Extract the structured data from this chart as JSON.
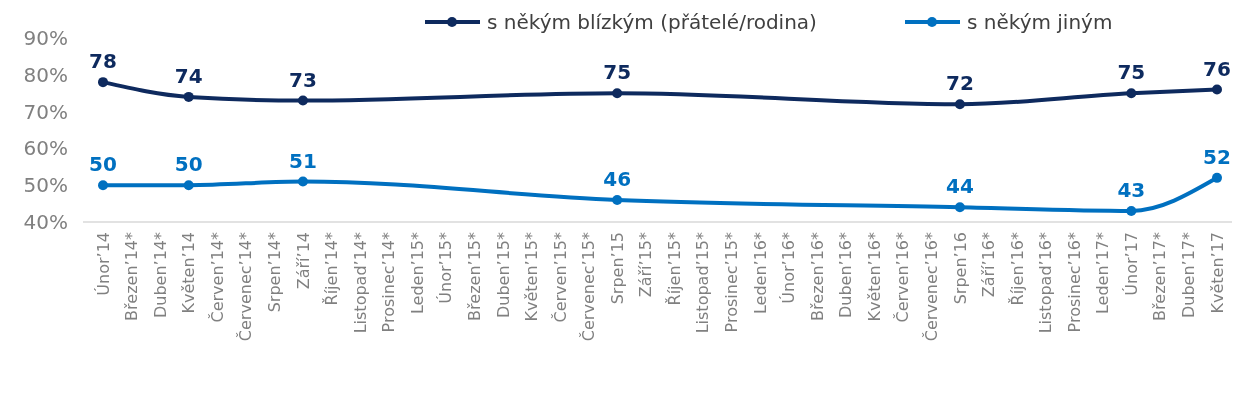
{
  "chart_data": {
    "type": "line",
    "categories": [
      "Únor’14",
      "Březen’14*",
      "Duben’14*",
      "Květen’14",
      "Červen’14*",
      "Červenec’14*",
      "Srpen’14*",
      "Září’14",
      "Říjen’14*",
      "Listopad’14*",
      "Prosinec’14*",
      "Leden’15*",
      "Únor’15*",
      "Březen’15*",
      "Duben’15*",
      "Květen’15*",
      "Červen’15*",
      "Červenec’15*",
      "Srpen’15",
      "Září’15*",
      "Říjen’15*",
      "Listopad’15*",
      "Prosinec’15*",
      "Leden’16*",
      "Únor’16*",
      "Březen’16*",
      "Duben’16*",
      "Květen’16*",
      "Červen’16*",
      "Červenec’16*",
      "Srpen’16",
      "Září’16*",
      "Říjen’16*",
      "Listopad’16*",
      "Prosinec’16*",
      "Leden’17*",
      "Únor’17",
      "Březen’17*",
      "Duben’17*",
      "Květen’17"
    ],
    "series": [
      {
        "name": "s někým blízkým (přátelé/rodina)",
        "color": "#0e2a5e",
        "values": [
          78,
          null,
          null,
          74,
          null,
          null,
          null,
          73,
          null,
          null,
          null,
          null,
          null,
          null,
          null,
          null,
          null,
          null,
          75,
          null,
          null,
          null,
          null,
          null,
          null,
          null,
          null,
          null,
          null,
          null,
          72,
          null,
          null,
          null,
          null,
          null,
          75,
          null,
          null,
          76
        ]
      },
      {
        "name": "s někým jiným",
        "color": "#0070c0",
        "values": [
          50,
          null,
          null,
          50,
          null,
          null,
          null,
          51,
          null,
          null,
          null,
          null,
          null,
          null,
          null,
          null,
          null,
          null,
          46,
          null,
          null,
          null,
          null,
          null,
          null,
          null,
          null,
          null,
          null,
          null,
          44,
          null,
          null,
          null,
          null,
          null,
          43,
          null,
          null,
          52
        ]
      }
    ],
    "ylim": [
      40,
      90
    ],
    "yticks": [
      {
        "value": 40,
        "label": "40%"
      },
      {
        "value": 50,
        "label": "50%"
      },
      {
        "value": 60,
        "label": "60%"
      },
      {
        "value": 70,
        "label": "70%"
      },
      {
        "value": 80,
        "label": "80%"
      },
      {
        "value": 90,
        "label": "90%"
      }
    ],
    "grid": false,
    "legend": "top right",
    "marker": "circle",
    "line_style": "solid",
    "data_labels": true
  }
}
